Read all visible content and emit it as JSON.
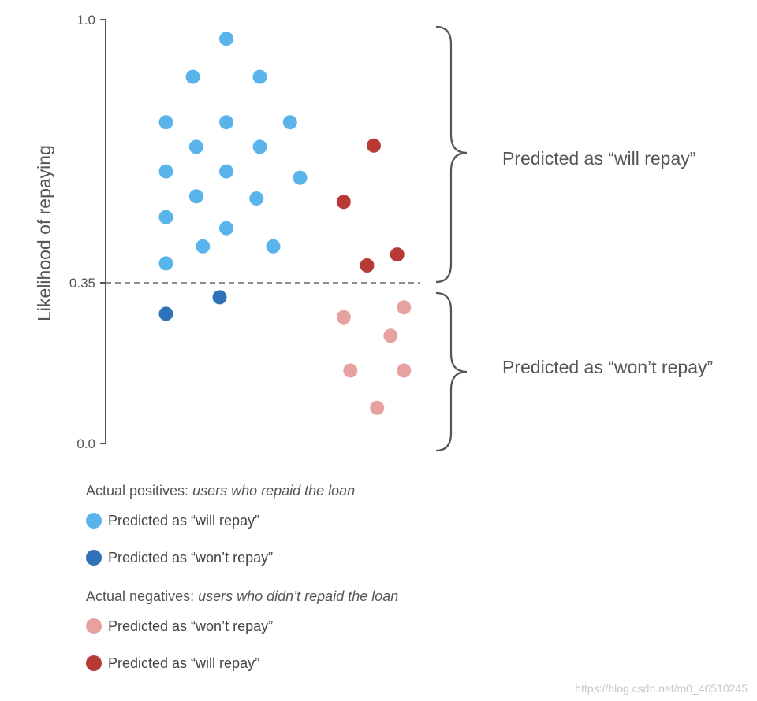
{
  "chart_data": {
    "type": "scatter",
    "ylabel": "Likelihood of repaying",
    "ylim": [
      0.0,
      1.0
    ],
    "yticks": [
      "1.0",
      "0.35",
      "0.0"
    ],
    "ytick_values": [
      1.0,
      0.35,
      0.0
    ],
    "threshold": 0.35,
    "threshold_label": "0.35",
    "brace_labels": {
      "upper": "Predicted as “will repay”",
      "lower": "Predicted as “won’t repay”"
    },
    "series": [
      {
        "name": "positives_predicted_will_repay",
        "color": "#5ab4ec",
        "points": [
          {
            "x": 3.6,
            "y": 0.955
          },
          {
            "x": 2.6,
            "y": 0.865
          },
          {
            "x": 4.6,
            "y": 0.865
          },
          {
            "x": 1.8,
            "y": 0.758
          },
          {
            "x": 3.6,
            "y": 0.758
          },
          {
            "x": 5.5,
            "y": 0.758
          },
          {
            "x": 2.7,
            "y": 0.7
          },
          {
            "x": 4.6,
            "y": 0.7
          },
          {
            "x": 1.8,
            "y": 0.642
          },
          {
            "x": 3.6,
            "y": 0.642
          },
          {
            "x": 5.8,
            "y": 0.627
          },
          {
            "x": 2.7,
            "y": 0.583
          },
          {
            "x": 4.5,
            "y": 0.578
          },
          {
            "x": 1.8,
            "y": 0.534
          },
          {
            "x": 3.6,
            "y": 0.508
          },
          {
            "x": 2.9,
            "y": 0.465
          },
          {
            "x": 5.0,
            "y": 0.465
          },
          {
            "x": 1.8,
            "y": 0.425
          }
        ]
      },
      {
        "name": "positives_predicted_wont_repay",
        "color": "#2f72b8",
        "points": [
          {
            "x": 3.4,
            "y": 0.345
          },
          {
            "x": 1.8,
            "y": 0.306
          }
        ]
      },
      {
        "name": "negatives_predicted_wont_repay",
        "color": "#e8a1a1",
        "points": [
          {
            "x": 8.9,
            "y": 0.321
          },
          {
            "x": 7.1,
            "y": 0.298
          },
          {
            "x": 8.5,
            "y": 0.254
          },
          {
            "x": 7.3,
            "y": 0.172
          },
          {
            "x": 8.9,
            "y": 0.172
          },
          {
            "x": 8.1,
            "y": 0.084
          }
        ]
      },
      {
        "name": "negatives_predicted_will_repay",
        "color": "#b73a35",
        "points": [
          {
            "x": 8.0,
            "y": 0.703
          },
          {
            "x": 7.1,
            "y": 0.57
          },
          {
            "x": 8.7,
            "y": 0.446
          },
          {
            "x": 7.8,
            "y": 0.42
          }
        ]
      }
    ]
  },
  "legend": {
    "positives_header": "Actual positives: ",
    "positives_header_italic": "users who repaid the loan",
    "negatives_header": "Actual negatives: ",
    "negatives_header_italic": "users who didn’t repaid the loan",
    "items": [
      {
        "label": "Predicted as “will repay”",
        "color": "#5ab4ec"
      },
      {
        "label": "Predicted as “won’t repay”",
        "color": "#2f72b8"
      },
      {
        "label": "Predicted as “won’t repay”",
        "color": "#e8a1a1"
      },
      {
        "label": "Predicted as “will repay”",
        "color": "#b73a35"
      }
    ]
  },
  "watermark": "https://blog.csdn.net/m0_46510245"
}
